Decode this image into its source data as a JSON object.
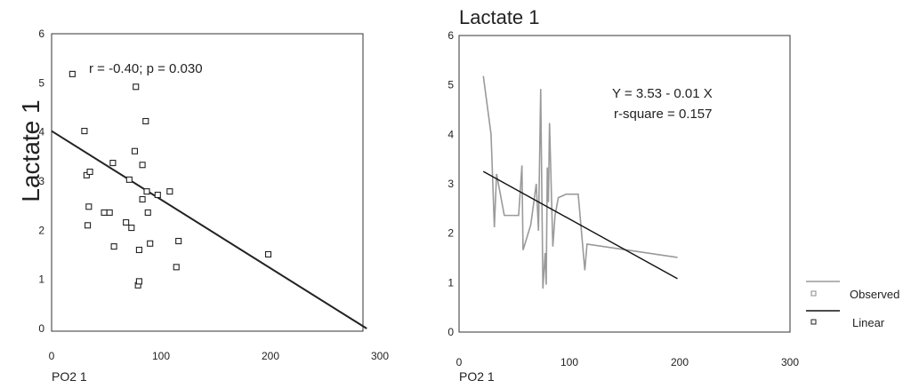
{
  "chart_data": [
    {
      "type": "scatter",
      "title": "",
      "xlabel": "PO2 1",
      "ylabel": "Lactate 1",
      "xlim": [
        0,
        300
      ],
      "ylim": [
        0,
        6
      ],
      "x_ticks": [
        "0",
        "100",
        "200",
        "300"
      ],
      "y_ticks": [
        "0",
        "1",
        "2",
        "3",
        "4",
        "5",
        "6"
      ],
      "annotation": "r = -0.40; p = 0.030",
      "series": [
        {
          "points": [
            [
              19,
              5.18
            ],
            [
              30,
              4.02
            ],
            [
              32,
              3.12
            ],
            [
              35,
              3.19
            ],
            [
              34,
              2.48
            ],
            [
              33,
              2.1
            ],
            [
              48,
              2.36
            ],
            [
              53,
              2.36
            ],
            [
              56,
              3.37
            ],
            [
              57,
              1.67
            ],
            [
              68,
              2.16
            ],
            [
              71,
              3.03
            ],
            [
              73,
              2.05
            ],
            [
              76,
              3.61
            ],
            [
              77,
              4.92
            ],
            [
              79,
              0.88
            ],
            [
              80,
              0.96
            ],
            [
              80,
              1.6
            ],
            [
              83,
              3.33
            ],
            [
              83,
              2.63
            ],
            [
              86,
              4.22
            ],
            [
              87,
              2.79
            ],
            [
              88,
              2.36
            ],
            [
              90,
              1.73
            ],
            [
              97,
              2.72
            ],
            [
              108,
              2.79
            ],
            [
              114,
              1.25
            ],
            [
              116,
              1.78
            ],
            [
              198,
              1.51
            ]
          ]
        }
      ],
      "fit_line": {
        "x": [
          0,
          288
        ],
        "y": [
          4.02,
          0
        ]
      }
    },
    {
      "type": "line",
      "title": "Lactate 1",
      "xlabel": "PO2 1",
      "ylabel": "",
      "xlim": [
        0,
        300
      ],
      "ylim": [
        0,
        6
      ],
      "x_ticks": [
        "0",
        "100",
        "200",
        "300"
      ],
      "y_ticks": [
        "0",
        "1",
        "2",
        "3",
        "4",
        "5",
        "6"
      ],
      "annotation": [
        "Y = 3.53 - 0.01 X",
        "r-square = 0.157"
      ],
      "legend_position": "bottom-right",
      "series": [
        {
          "name": "Observed",
          "color": "#9a9a9a",
          "x": [
            22,
            29,
            32,
            34,
            41,
            47,
            54,
            57,
            58,
            65,
            70,
            72,
            74,
            76,
            78,
            79,
            80,
            81,
            82,
            85,
            87,
            90,
            97,
            108,
            114,
            116,
            198
          ],
          "y": [
            5.18,
            4.0,
            2.12,
            3.2,
            2.36,
            2.36,
            2.36,
            3.37,
            1.66,
            2.17,
            3.0,
            2.05,
            4.92,
            0.88,
            1.6,
            0.96,
            3.33,
            2.63,
            4.23,
            1.73,
            2.36,
            2.72,
            2.79,
            2.79,
            1.25,
            1.78,
            1.51
          ]
        },
        {
          "name": "Linear",
          "color": "#111111",
          "x": [
            22,
            198
          ],
          "y": [
            3.25,
            1.08
          ]
        }
      ]
    }
  ]
}
